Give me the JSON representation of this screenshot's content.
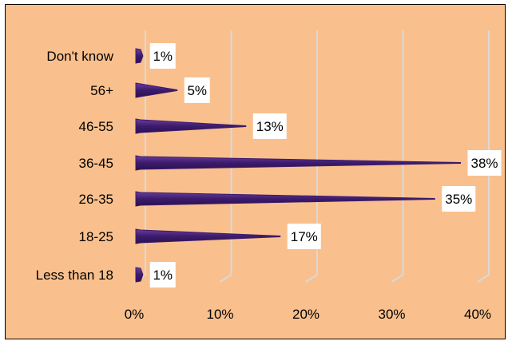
{
  "chart_data": {
    "type": "bar",
    "orientation": "horizontal",
    "categories": [
      "Less than 18",
      "18-25",
      "26-35",
      "36-45",
      "46-55",
      "56+",
      "Don't know"
    ],
    "values": [
      1,
      17,
      35,
      38,
      13,
      5,
      1
    ],
    "data_labels": [
      "1%",
      "17%",
      "35%",
      "38%",
      "13%",
      "5%",
      "1%"
    ],
    "x_ticks": [
      0,
      10,
      20,
      30,
      40
    ],
    "x_tick_labels": [
      "0%",
      "10%",
      "20%",
      "30%",
      "40%"
    ],
    "xlim": [
      0,
      40
    ],
    "title": "",
    "xlabel": "",
    "ylabel": "",
    "grid": true,
    "legend": "none",
    "colors": {
      "background": "#F9C08D",
      "bar": "#3D1B6B",
      "bar_highlight": "#6A3FA0",
      "gridline": "#D9D9D9",
      "label_box": "#FFFFFF"
    }
  }
}
